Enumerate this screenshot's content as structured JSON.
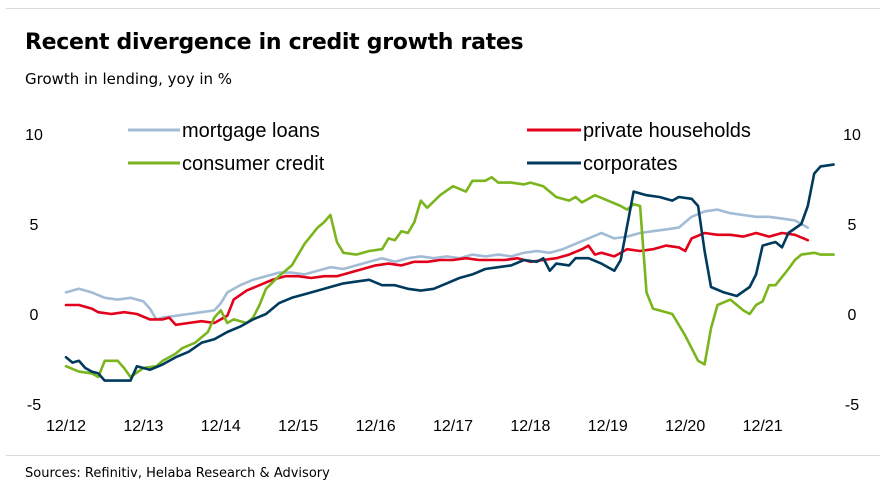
{
  "title": "Recent divergence in credit growth rates",
  "subtitle": "Growth in lending, yoy in %",
  "source": "Sources: Refinitiv, Helaba Research & Advisory",
  "chart_data": {
    "type": "line",
    "title": "Recent divergence in credit growth rates",
    "subtitle": "Growth in lending, yoy in %",
    "ylim": [
      -5,
      10
    ],
    "yticks": [
      "10",
      "5",
      "0",
      "-5"
    ],
    "ytick_values": [
      10,
      5,
      0,
      -5
    ],
    "x_start": "12/12",
    "xlim_months": [
      0,
      116
    ],
    "xtick_labels": [
      "12/12",
      "12/13",
      "12/14",
      "12/15",
      "12/16",
      "12/17",
      "12/18",
      "12/19",
      "12/20",
      "12/21"
    ],
    "legend_position": "top",
    "grid": false,
    "series": [
      {
        "name": "mortgage loans",
        "color": "#a3bcd6",
        "points": [
          [
            0,
            1.2
          ],
          [
            2,
            1.4
          ],
          [
            4,
            1.2
          ],
          [
            6,
            0.9
          ],
          [
            8,
            0.8
          ],
          [
            10,
            0.9
          ],
          [
            12,
            0.7
          ],
          [
            13,
            0.3
          ],
          [
            14,
            -0.3
          ],
          [
            15,
            -0.2
          ],
          [
            17,
            -0.1
          ],
          [
            19,
            0.0
          ],
          [
            21,
            0.1
          ],
          [
            23,
            0.2
          ],
          [
            24,
            0.6
          ],
          [
            25,
            1.2
          ],
          [
            27,
            1.6
          ],
          [
            29,
            1.9
          ],
          [
            31,
            2.1
          ],
          [
            33,
            2.3
          ],
          [
            35,
            2.3
          ],
          [
            37,
            2.2
          ],
          [
            39,
            2.4
          ],
          [
            41,
            2.6
          ],
          [
            43,
            2.5
          ],
          [
            45,
            2.7
          ],
          [
            47,
            2.9
          ],
          [
            49,
            3.1
          ],
          [
            51,
            2.9
          ],
          [
            53,
            3.1
          ],
          [
            55,
            3.2
          ],
          [
            57,
            3.1
          ],
          [
            59,
            3.2
          ],
          [
            61,
            3.1
          ],
          [
            63,
            3.3
          ],
          [
            65,
            3.2
          ],
          [
            67,
            3.3
          ],
          [
            69,
            3.2
          ],
          [
            71,
            3.4
          ],
          [
            73,
            3.5
          ],
          [
            75,
            3.4
          ],
          [
            77,
            3.6
          ],
          [
            79,
            3.9
          ],
          [
            81,
            4.2
          ],
          [
            83,
            4.5
          ],
          [
            85,
            4.2
          ],
          [
            87,
            4.3
          ],
          [
            89,
            4.5
          ],
          [
            91,
            4.6
          ],
          [
            93,
            4.7
          ],
          [
            95,
            4.8
          ],
          [
            97,
            5.4
          ],
          [
            99,
            5.7
          ],
          [
            101,
            5.8
          ],
          [
            103,
            5.6
          ],
          [
            105,
            5.5
          ],
          [
            107,
            5.4
          ],
          [
            109,
            5.4
          ],
          [
            111,
            5.3
          ],
          [
            113,
            5.2
          ],
          [
            115,
            4.8
          ]
        ]
      },
      {
        "name": "private households",
        "color": "#e2001a",
        "points": [
          [
            0,
            0.5
          ],
          [
            2,
            0.5
          ],
          [
            4,
            0.3
          ],
          [
            5,
            0.1
          ],
          [
            7,
            0.0
          ],
          [
            9,
            0.1
          ],
          [
            11,
            0.0
          ],
          [
            13,
            -0.3
          ],
          [
            15,
            -0.3
          ],
          [
            16,
            -0.2
          ],
          [
            17,
            -0.6
          ],
          [
            19,
            -0.5
          ],
          [
            21,
            -0.4
          ],
          [
            23,
            -0.5
          ],
          [
            25,
            -0.1
          ],
          [
            26,
            0.8
          ],
          [
            28,
            1.3
          ],
          [
            30,
            1.6
          ],
          [
            32,
            1.9
          ],
          [
            34,
            2.1
          ],
          [
            36,
            2.1
          ],
          [
            38,
            2.0
          ],
          [
            40,
            2.1
          ],
          [
            42,
            2.1
          ],
          [
            44,
            2.3
          ],
          [
            46,
            2.5
          ],
          [
            48,
            2.7
          ],
          [
            50,
            2.8
          ],
          [
            52,
            2.7
          ],
          [
            54,
            2.9
          ],
          [
            56,
            2.9
          ],
          [
            58,
            3.0
          ],
          [
            60,
            3.0
          ],
          [
            62,
            3.1
          ],
          [
            64,
            3.0
          ],
          [
            66,
            3.0
          ],
          [
            68,
            3.0
          ],
          [
            70,
            3.1
          ],
          [
            72,
            2.9
          ],
          [
            74,
            3.0
          ],
          [
            76,
            3.1
          ],
          [
            78,
            3.3
          ],
          [
            80,
            3.6
          ],
          [
            81,
            3.8
          ],
          [
            82,
            3.3
          ],
          [
            83,
            3.4
          ],
          [
            85,
            3.2
          ],
          [
            87,
            3.6
          ],
          [
            89,
            3.5
          ],
          [
            91,
            3.6
          ],
          [
            93,
            3.8
          ],
          [
            95,
            3.7
          ],
          [
            96,
            3.5
          ],
          [
            97,
            4.2
          ],
          [
            99,
            4.5
          ],
          [
            101,
            4.4
          ],
          [
            103,
            4.4
          ],
          [
            105,
            4.3
          ],
          [
            107,
            4.5
          ],
          [
            109,
            4.3
          ],
          [
            111,
            4.5
          ],
          [
            113,
            4.4
          ],
          [
            115,
            4.1
          ]
        ]
      },
      {
        "name": "consumer credit",
        "color": "#7ab51d",
        "points": [
          [
            0,
            -2.9
          ],
          [
            2,
            -3.2
          ],
          [
            4,
            -3.3
          ],
          [
            5,
            -3.5
          ],
          [
            6,
            -2.6
          ],
          [
            8,
            -2.6
          ],
          [
            9,
            -3.0
          ],
          [
            10,
            -3.5
          ],
          [
            12,
            -3.0
          ],
          [
            14,
            -2.9
          ],
          [
            15,
            -2.6
          ],
          [
            17,
            -2.2
          ],
          [
            18,
            -1.9
          ],
          [
            20,
            -1.6
          ],
          [
            22,
            -1.0
          ],
          [
            23,
            -0.2
          ],
          [
            24,
            0.2
          ],
          [
            25,
            -0.5
          ],
          [
            26,
            -0.3
          ],
          [
            28,
            -0.5
          ],
          [
            29,
            -0.2
          ],
          [
            30,
            0.5
          ],
          [
            31,
            1.4
          ],
          [
            33,
            2.1
          ],
          [
            35,
            2.7
          ],
          [
            37,
            3.9
          ],
          [
            39,
            4.8
          ],
          [
            40,
            5.1
          ],
          [
            41,
            5.5
          ],
          [
            42,
            4.0
          ],
          [
            43,
            3.4
          ],
          [
            45,
            3.3
          ],
          [
            47,
            3.5
          ],
          [
            49,
            3.6
          ],
          [
            50,
            4.2
          ],
          [
            51,
            4.1
          ],
          [
            52,
            4.6
          ],
          [
            53,
            4.5
          ],
          [
            54,
            5.1
          ],
          [
            55,
            6.3
          ],
          [
            56,
            5.9
          ],
          [
            58,
            6.6
          ],
          [
            60,
            7.1
          ],
          [
            62,
            6.8
          ],
          [
            63,
            7.4
          ],
          [
            65,
            7.4
          ],
          [
            66,
            7.6
          ],
          [
            67,
            7.3
          ],
          [
            69,
            7.3
          ],
          [
            71,
            7.2
          ],
          [
            72,
            7.3
          ],
          [
            74,
            7.1
          ],
          [
            76,
            6.5
          ],
          [
            78,
            6.3
          ],
          [
            79,
            6.5
          ],
          [
            80,
            6.2
          ],
          [
            82,
            6.6
          ],
          [
            84,
            6.3
          ],
          [
            86,
            6.0
          ],
          [
            87,
            5.8
          ],
          [
            88,
            6.1
          ],
          [
            89,
            6.0
          ],
          [
            90,
            1.2
          ],
          [
            91,
            0.3
          ],
          [
            92,
            0.2
          ],
          [
            94,
            0.0
          ],
          [
            96,
            -1.2
          ],
          [
            98,
            -2.6
          ],
          [
            99,
            -2.8
          ],
          [
            100,
            -0.8
          ],
          [
            101,
            0.5
          ],
          [
            103,
            0.8
          ],
          [
            105,
            0.2
          ],
          [
            106,
            0.0
          ],
          [
            107,
            0.5
          ],
          [
            108,
            0.7
          ],
          [
            109,
            1.6
          ],
          [
            110,
            1.6
          ],
          [
            112,
            2.5
          ],
          [
            113,
            3.0
          ],
          [
            114,
            3.3
          ],
          [
            116,
            3.4
          ],
          [
            117,
            3.3
          ],
          [
            119,
            3.3
          ]
        ]
      },
      {
        "name": "corporates",
        "color": "#003a5d",
        "points": [
          [
            0,
            -2.4
          ],
          [
            1,
            -2.7
          ],
          [
            2,
            -2.6
          ],
          [
            3,
            -3.0
          ],
          [
            4,
            -3.2
          ],
          [
            5,
            -3.3
          ],
          [
            6,
            -3.7
          ],
          [
            8,
            -3.7
          ],
          [
            10,
            -3.7
          ],
          [
            11,
            -2.9
          ],
          [
            13,
            -3.1
          ],
          [
            15,
            -2.8
          ],
          [
            17,
            -2.4
          ],
          [
            19,
            -2.1
          ],
          [
            21,
            -1.6
          ],
          [
            23,
            -1.4
          ],
          [
            25,
            -1.0
          ],
          [
            27,
            -0.7
          ],
          [
            29,
            -0.3
          ],
          [
            31,
            0.0
          ],
          [
            33,
            0.6
          ],
          [
            35,
            0.9
          ],
          [
            37,
            1.1
          ],
          [
            39,
            1.3
          ],
          [
            41,
            1.5
          ],
          [
            43,
            1.7
          ],
          [
            45,
            1.8
          ],
          [
            47,
            1.9
          ],
          [
            49,
            1.6
          ],
          [
            51,
            1.6
          ],
          [
            53,
            1.4
          ],
          [
            55,
            1.3
          ],
          [
            57,
            1.4
          ],
          [
            59,
            1.7
          ],
          [
            61,
            2.0
          ],
          [
            63,
            2.2
          ],
          [
            65,
            2.5
          ],
          [
            67,
            2.6
          ],
          [
            69,
            2.7
          ],
          [
            71,
            3.0
          ],
          [
            73,
            2.9
          ],
          [
            74,
            3.1
          ],
          [
            75,
            2.4
          ],
          [
            76,
            2.8
          ],
          [
            78,
            2.7
          ],
          [
            79,
            3.1
          ],
          [
            81,
            3.1
          ],
          [
            83,
            2.8
          ],
          [
            85,
            2.4
          ],
          [
            86,
            3.0
          ],
          [
            88,
            6.8
          ],
          [
            90,
            6.6
          ],
          [
            92,
            6.5
          ],
          [
            94,
            6.3
          ],
          [
            95,
            6.5
          ],
          [
            97,
            6.4
          ],
          [
            98,
            6.0
          ],
          [
            99,
            3.5
          ],
          [
            100,
            1.5
          ],
          [
            102,
            1.2
          ],
          [
            104,
            1.0
          ],
          [
            106,
            1.5
          ],
          [
            107,
            2.2
          ],
          [
            108,
            3.8
          ],
          [
            109,
            3.9
          ],
          [
            110,
            4.0
          ],
          [
            111,
            3.7
          ],
          [
            112,
            4.5
          ],
          [
            114,
            5.0
          ],
          [
            115,
            6.0
          ],
          [
            116,
            7.8
          ],
          [
            117,
            8.2
          ],
          [
            119,
            8.3
          ]
        ]
      }
    ]
  }
}
